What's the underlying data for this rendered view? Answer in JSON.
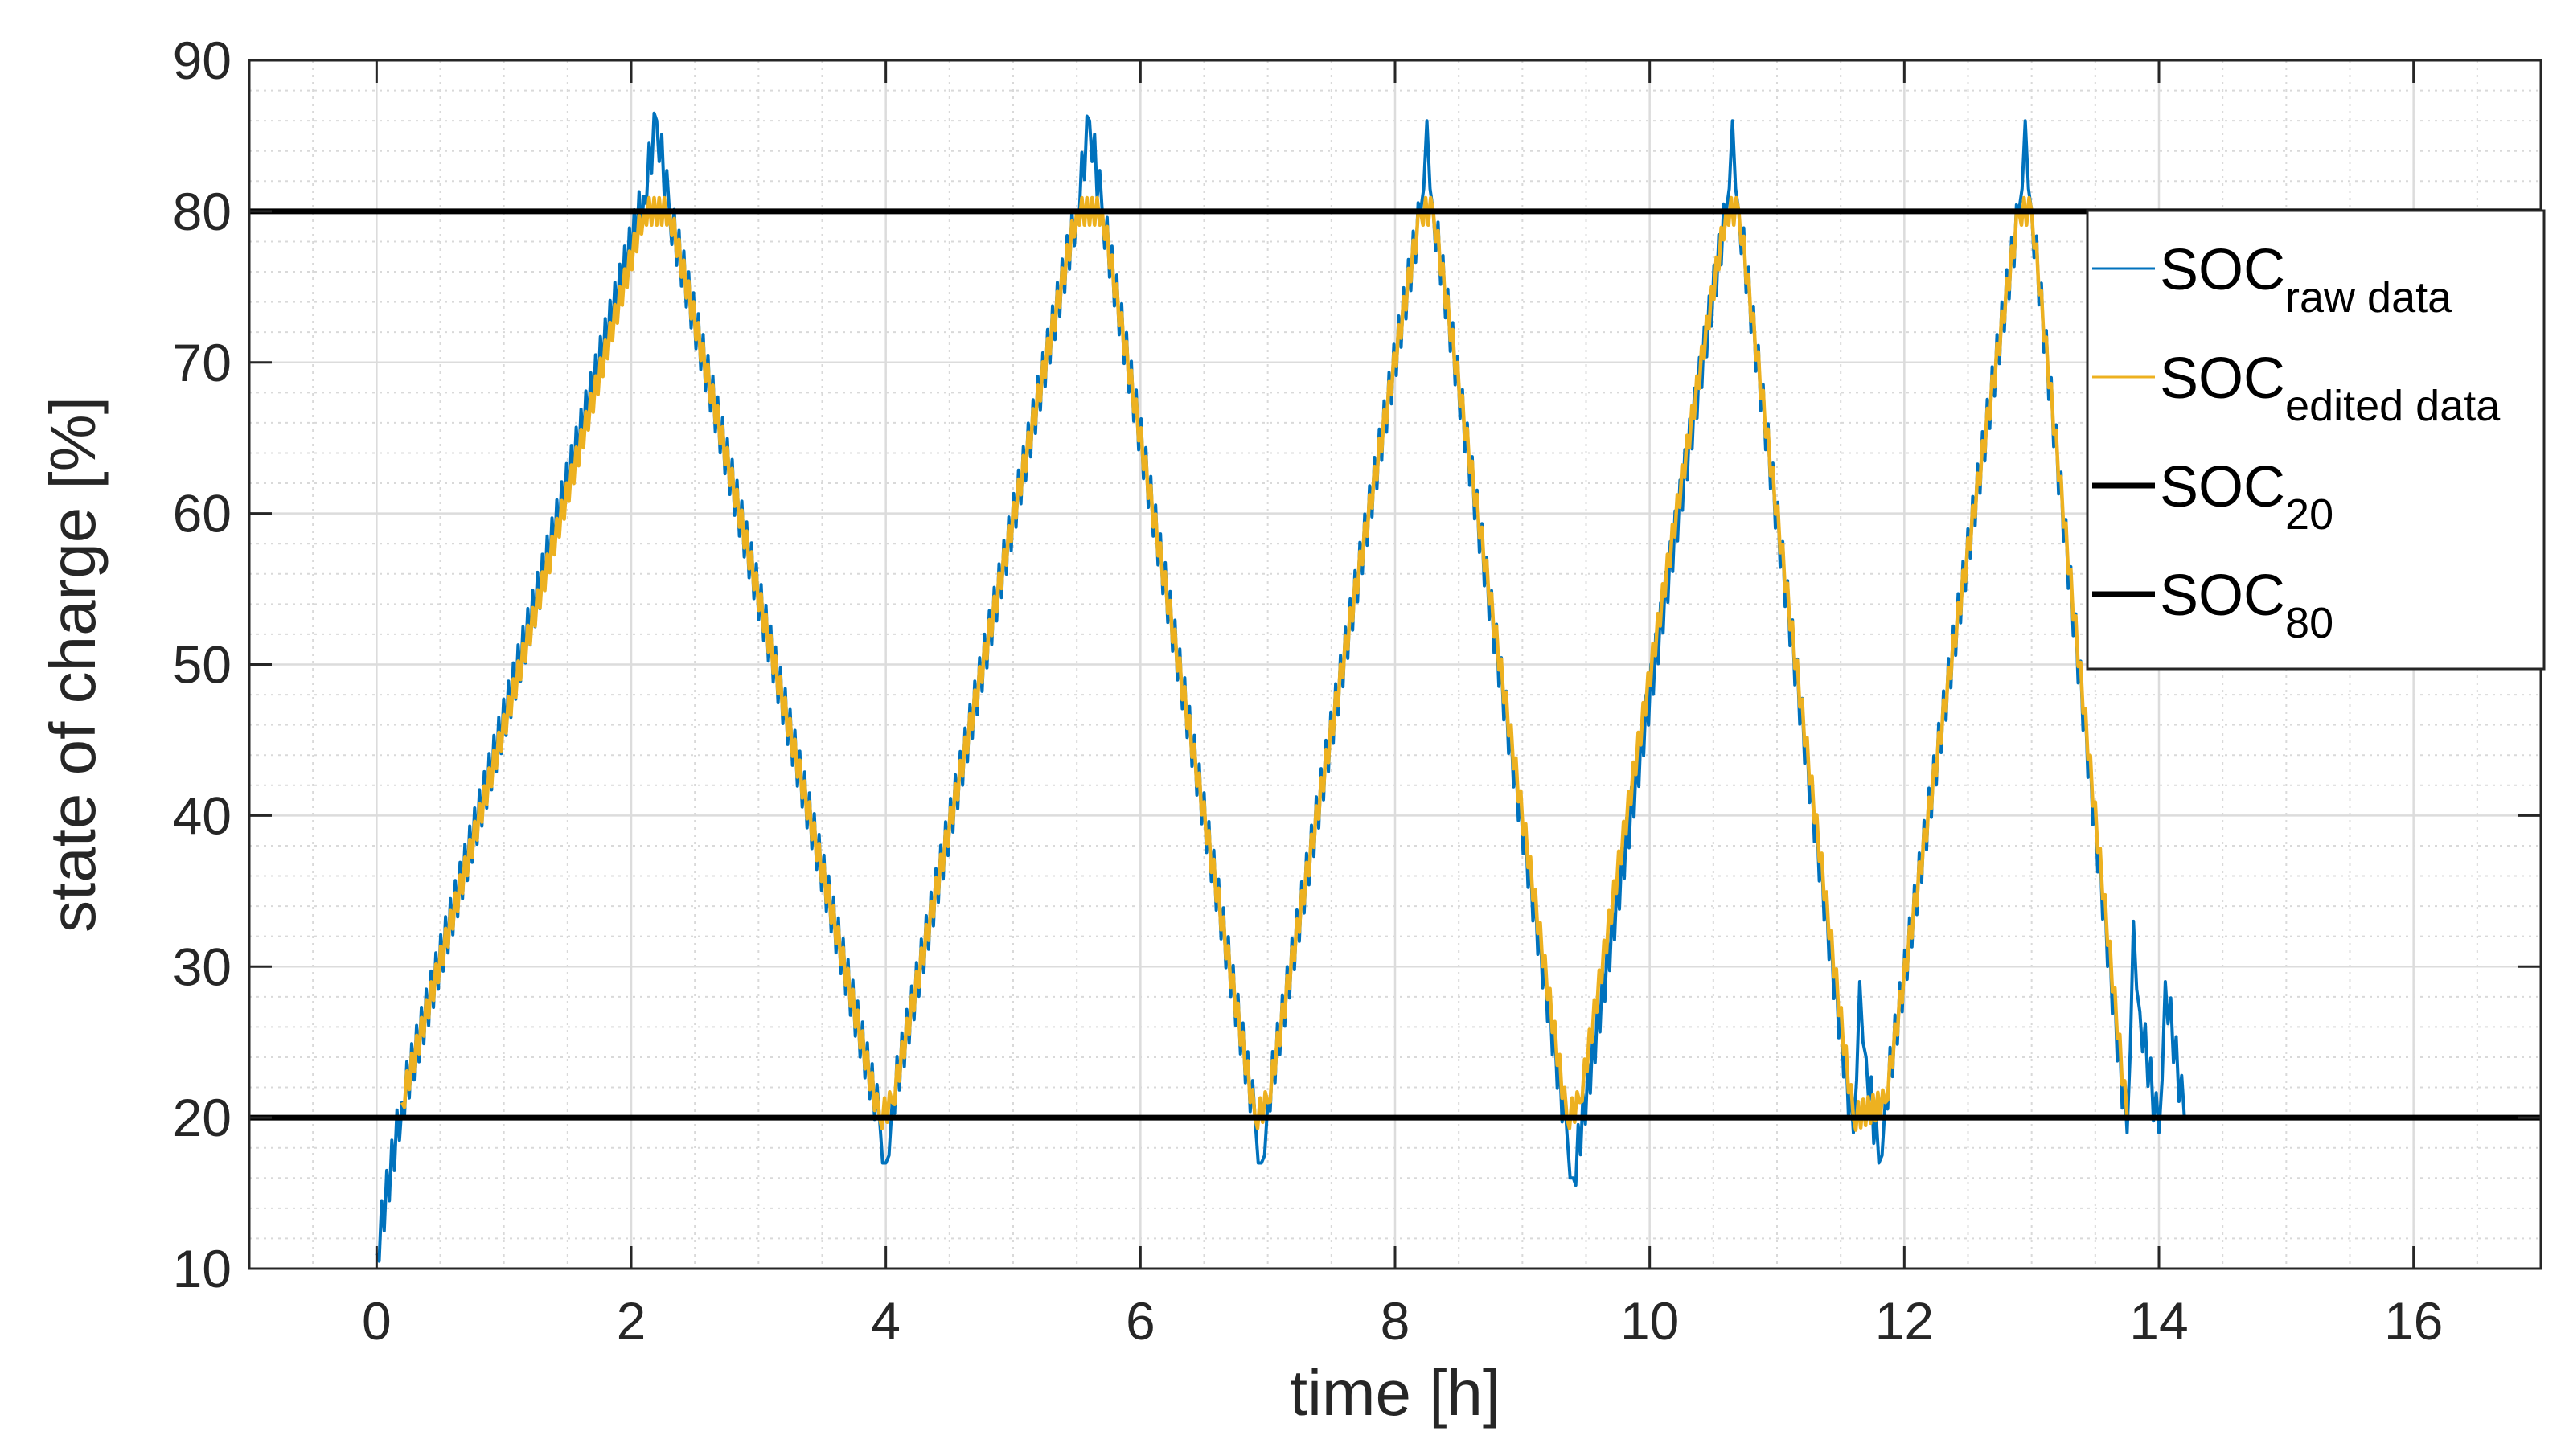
{
  "chart_data": {
    "type": "line",
    "xlabel": "time [h]",
    "ylabel": "state of charge [%]",
    "xlim": [
      -1,
      17
    ],
    "ylim": [
      10,
      90
    ],
    "xticks": [
      0,
      2,
      4,
      6,
      8,
      10,
      12,
      14,
      16
    ],
    "yticks": [
      10,
      20,
      30,
      40,
      50,
      60,
      70,
      80,
      90
    ],
    "grid": true,
    "minor_grid": true,
    "legend_position": "top-right",
    "legend": [
      {
        "base": "SOC",
        "sub": "raw data",
        "color": "#0072BD",
        "style": "thin line"
      },
      {
        "base": "SOC",
        "sub": "edited data",
        "color": "#EDB120",
        "style": "thin line"
      },
      {
        "base": "SOC",
        "sub": "20",
        "color": "#000000",
        "style": "thick line"
      },
      {
        "base": "SOC",
        "sub": "80",
        "color": "#000000",
        "style": "thick line"
      }
    ],
    "series": [
      {
        "color": "#0072BD",
        "noise_band": 3,
        "x": [
          0.0,
          0.2,
          2.1,
          2.2,
          2.3,
          3.95,
          4.0,
          4.05,
          5.5,
          5.6,
          5.7,
          6.9,
          6.95,
          7.0,
          8.2,
          8.25,
          8.3,
          9.35,
          9.4,
          10.6,
          10.65,
          10.7,
          11.6,
          11.65,
          11.7,
          11.8,
          11.85,
          12.9,
          12.95,
          13.0,
          13.75,
          13.8,
          13.85,
          14.0,
          14.05,
          14.2
        ],
        "y": [
          11,
          21,
          81,
          86,
          80,
          20,
          17,
          21,
          80,
          86,
          80,
          20,
          17,
          21,
          80,
          86,
          80,
          19,
          16,
          80,
          86,
          80,
          19,
          29,
          24,
          17,
          21,
          80,
          86,
          80,
          19,
          33,
          27,
          19,
          29,
          20
        ]
      },
      {
        "color": "#EDB120",
        "noise_band": 1.8,
        "x": [
          0.2,
          2.1,
          2.3,
          3.95,
          4.05,
          5.5,
          5.7,
          6.9,
          7.0,
          8.2,
          8.3,
          9.35,
          9.45,
          10.6,
          10.7,
          11.6,
          11.85,
          12.9,
          13.0,
          13.75
        ],
        "y": [
          21,
          80,
          80,
          20,
          21,
          80,
          80,
          20,
          21,
          80,
          80,
          20,
          21,
          80,
          80,
          20,
          21,
          80,
          80,
          20
        ]
      }
    ],
    "reference_lines": [
      {
        "y": 80,
        "color": "#000000"
      },
      {
        "y": 20,
        "color": "#000000"
      }
    ]
  }
}
